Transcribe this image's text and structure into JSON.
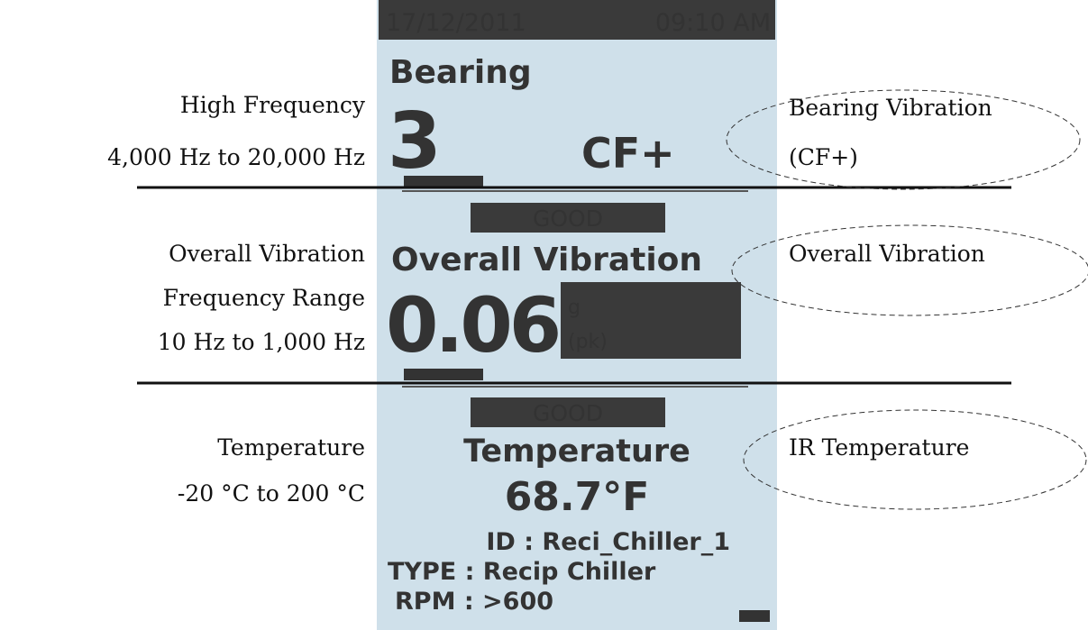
{
  "screen": {
    "date": "17/12/2011",
    "time": "09:10 AM",
    "bearing": {
      "title": "Bearing",
      "value": "3",
      "unit": "CF+",
      "status": "GOOD"
    },
    "overall": {
      "title": "Overall Vibration",
      "value": "0.06",
      "unit_lines": [
        "g",
        "(pk)"
      ],
      "status": "GOOD"
    },
    "temperature": {
      "title": "Temperature",
      "value": "68.7°F"
    },
    "info": [
      "ID : Reci_Chiller_1",
      "TYPE : Recip Chiller",
      "RPM : >600"
    ]
  },
  "left_labels": [
    [
      "High Frequency",
      "4,000 Hz to 20,000 Hz"
    ],
    [
      "Overall Vibration",
      "Frequency Range",
      "10 Hz to 1,000 Hz"
    ],
    [
      "Temperature",
      "-20 °C to 200 °C"
    ]
  ],
  "right_labels": [
    [
      "Bearing Vibration",
      "(CF+)"
    ],
    [
      "Overall Vibration"
    ],
    [
      "IR Temperature"
    ]
  ]
}
